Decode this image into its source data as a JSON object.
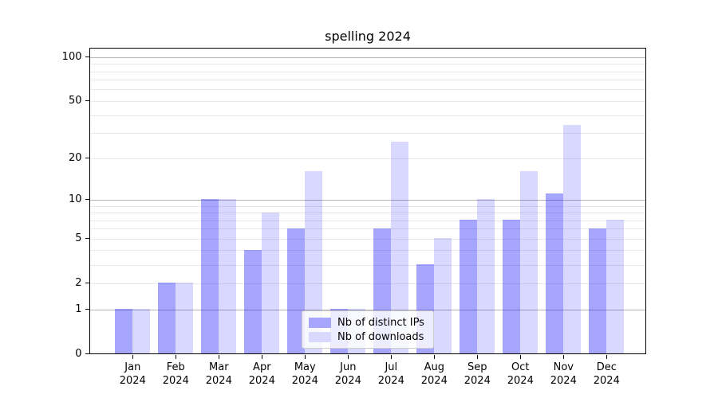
{
  "title": "spelling 2024",
  "chart_data": {
    "type": "bar",
    "title": "spelling 2024",
    "categories": [
      "Jan 2024",
      "Feb 2024",
      "Mar 2024",
      "Apr 2024",
      "May 2024",
      "Jun 2024",
      "Jul 2024",
      "Aug 2024",
      "Sep 2024",
      "Oct 2024",
      "Nov 2024",
      "Dec 2024"
    ],
    "x_tick_line1": [
      "Jan",
      "Feb",
      "Mar",
      "Apr",
      "May",
      "Jun",
      "Jul",
      "Aug",
      "Sep",
      "Oct",
      "Nov",
      "Dec"
    ],
    "x_tick_line2": "2024",
    "series": [
      {
        "name": "Nb of distinct IPs",
        "fill": "rgba(0,0,255,0.35)",
        "swatch": "#a6a6ff",
        "values": [
          1,
          2,
          10,
          4,
          6,
          1,
          6,
          3,
          7,
          7,
          11,
          6
        ]
      },
      {
        "name": "Nb of downloads",
        "fill": "rgba(0,0,255,0.15)",
        "swatch": "#d9d9ff",
        "values": [
          1,
          2,
          10,
          8,
          16,
          1,
          26,
          5,
          10,
          16,
          34,
          7
        ]
      }
    ],
    "ylabel": "",
    "xlabel": "",
    "yscale": "log1p",
    "ylim": [
      0,
      115
    ],
    "y_tick_labels": [
      0,
      1,
      2,
      5,
      10,
      20,
      50,
      100
    ],
    "major_gridlines": [
      1,
      10,
      100
    ],
    "minor_gridlines": [
      2,
      3,
      4,
      5,
      6,
      7,
      8,
      9,
      20,
      30,
      40,
      50,
      60,
      70,
      80,
      90
    ],
    "grid_on": true,
    "legend_position": "lower-center"
  },
  "colors": {
    "background": "#ffffff",
    "axis": "#000000",
    "grid_major": "#b3b3b3",
    "grid_minor": "#e8e8e8",
    "legend_border": "#cccccc"
  }
}
